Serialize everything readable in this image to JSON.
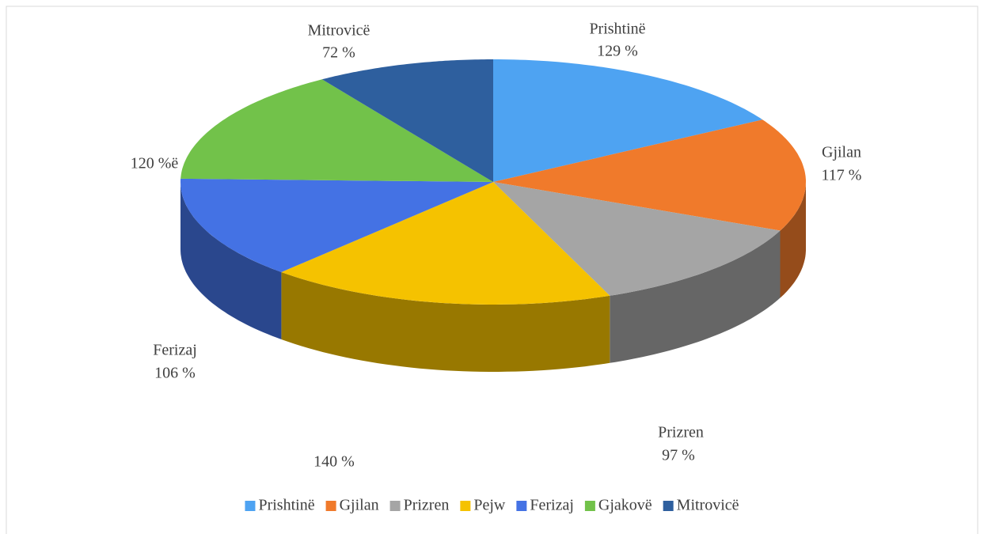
{
  "chart_data": {
    "type": "pie",
    "categories": [
      "Prishtinë",
      "Gjilan",
      "Prizren",
      "Pejw",
      "Ferizaj",
      "Gjakovë",
      "Mitrovicë"
    ],
    "values": [
      129,
      117,
      97,
      140,
      106,
      120,
      72
    ],
    "value_labels": [
      "129 %",
      "117 %",
      "97 %",
      "140 %",
      "106 %",
      "120 %ë",
      "72 %"
    ],
    "colors": [
      "#4ea3f2",
      "#f07a2b",
      "#a5a5a5",
      "#f5c200",
      "#4472e4",
      "#72c24a",
      "#2e5f9e"
    ],
    "legend": "bottom"
  }
}
